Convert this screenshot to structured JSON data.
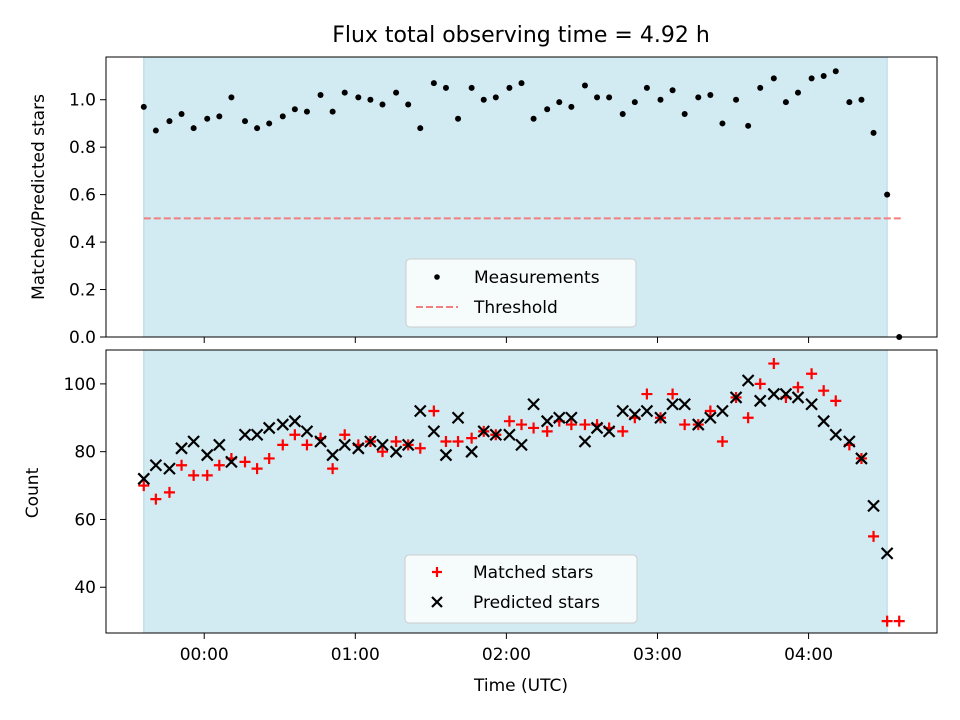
{
  "chart_data": {
    "title": "Flux total observing time = 4.92 h",
    "type": "scatter",
    "xlabel": "Time (UTC)",
    "x_unit": "hours UTC",
    "xlim": [
      -0.65,
      4.85
    ],
    "xticks": [
      {
        "value": 0,
        "label": "00:00"
      },
      {
        "value": 1,
        "label": "01:00"
      },
      {
        "value": 2,
        "label": "02:00"
      },
      {
        "value": 3,
        "label": "03:00"
      },
      {
        "value": 4,
        "label": "04:00"
      }
    ],
    "observing_span": [
      -0.4,
      4.52
    ],
    "colors": {
      "span": "#add8e6",
      "matched": "#ff0000",
      "predicted": "#000000",
      "threshold": "#f08080"
    },
    "panels": [
      {
        "ylabel": "Matched/Predicted stars",
        "ylim": [
          0.0,
          1.18
        ],
        "yticks": [
          0.0,
          0.2,
          0.4,
          0.6,
          0.8,
          1.0
        ],
        "threshold": 0.5,
        "legend": {
          "position": "lower center",
          "entries": [
            "Measurements",
            "Threshold"
          ]
        },
        "series": [
          {
            "name": "Measurements",
            "marker": "dot",
            "x": [
              -0.4,
              -0.32,
              -0.23,
              -0.15,
              -0.07,
              0.02,
              0.1,
              0.18,
              0.27,
              0.35,
              0.43,
              0.52,
              0.6,
              0.68,
              0.77,
              0.85,
              0.93,
              1.02,
              1.1,
              1.18,
              1.27,
              1.35,
              1.43,
              1.52,
              1.6,
              1.68,
              1.77,
              1.85,
              1.93,
              2.02,
              2.1,
              2.18,
              2.27,
              2.35,
              2.43,
              2.52,
              2.6,
              2.68,
              2.77,
              2.85,
              2.93,
              3.02,
              3.1,
              3.18,
              3.27,
              3.35,
              3.43,
              3.52,
              3.6,
              3.68,
              3.77,
              3.85,
              3.93,
              4.02,
              4.1,
              4.18,
              4.27,
              4.35,
              4.43,
              4.52,
              4.6
            ],
            "y": [
              0.97,
              0.87,
              0.91,
              0.94,
              0.88,
              0.92,
              0.93,
              1.01,
              0.91,
              0.88,
              0.9,
              0.93,
              0.96,
              0.95,
              1.02,
              0.95,
              1.03,
              1.01,
              1.0,
              0.98,
              1.03,
              0.98,
              0.88,
              1.07,
              1.05,
              0.92,
              1.05,
              1.0,
              1.01,
              1.05,
              1.07,
              0.92,
              0.96,
              0.99,
              0.97,
              1.06,
              1.01,
              1.01,
              0.94,
              0.99,
              1.05,
              1.0,
              1.04,
              0.94,
              1.01,
              1.02,
              0.9,
              1.0,
              0.89,
              1.05,
              1.09,
              0.99,
              1.03,
              1.09,
              1.1,
              1.12,
              0.99,
              1.0,
              0.86,
              0.6,
              0.0
            ]
          }
        ]
      },
      {
        "ylabel": "Count",
        "ylim": [
          26.5,
          110
        ],
        "yticks": [
          40,
          60,
          80,
          100
        ],
        "legend": {
          "position": "lower center",
          "entries": [
            "Matched stars",
            "Predicted stars"
          ]
        },
        "series": [
          {
            "name": "Matched stars",
            "marker": "plus",
            "x": [
              -0.4,
              -0.32,
              -0.23,
              -0.15,
              -0.07,
              0.02,
              0.1,
              0.18,
              0.27,
              0.35,
              0.43,
              0.52,
              0.6,
              0.68,
              0.77,
              0.85,
              0.93,
              1.02,
              1.1,
              1.18,
              1.27,
              1.35,
              1.43,
              1.52,
              1.6,
              1.68,
              1.77,
              1.85,
              1.93,
              2.02,
              2.1,
              2.18,
              2.27,
              2.35,
              2.43,
              2.52,
              2.6,
              2.68,
              2.77,
              2.85,
              2.93,
              3.02,
              3.1,
              3.18,
              3.27,
              3.35,
              3.43,
              3.52,
              3.6,
              3.68,
              3.77,
              3.85,
              3.93,
              4.02,
              4.1,
              4.18,
              4.27,
              4.35,
              4.43,
              4.52,
              4.6
            ],
            "y": [
              70,
              66,
              68,
              76,
              73,
              73,
              76,
              78,
              77,
              75,
              78,
              82,
              85,
              82,
              84,
              75,
              85,
              82,
              83,
              80,
              83,
              82,
              81,
              92,
              83,
              83,
              84,
              86,
              85,
              89,
              88,
              87,
              86,
              89,
              88,
              88,
              88,
              87,
              86,
              90,
              97,
              90,
              97,
              88,
              88,
              92,
              83,
              96,
              90,
              100,
              106,
              96,
              99,
              103,
              98,
              95,
              82,
              78,
              55,
              30,
              30
            ]
          },
          {
            "name": "Predicted stars",
            "marker": "x",
            "x": [
              -0.4,
              -0.32,
              -0.23,
              -0.15,
              -0.07,
              0.02,
              0.1,
              0.18,
              0.27,
              0.35,
              0.43,
              0.52,
              0.6,
              0.68,
              0.77,
              0.85,
              0.93,
              1.02,
              1.1,
              1.18,
              1.27,
              1.35,
              1.43,
              1.52,
              1.6,
              1.68,
              1.77,
              1.85,
              1.93,
              2.02,
              2.1,
              2.18,
              2.27,
              2.35,
              2.43,
              2.52,
              2.6,
              2.68,
              2.77,
              2.85,
              2.93,
              3.02,
              3.1,
              3.18,
              3.27,
              3.35,
              3.43,
              3.52,
              3.6,
              3.68,
              3.77,
              3.85,
              3.93,
              4.02,
              4.1,
              4.18,
              4.27,
              4.35,
              4.43,
              4.52
            ],
            "y": [
              72,
              76,
              75,
              81,
              83,
              79,
              82,
              77,
              85,
              85,
              87,
              88,
              89,
              86,
              83,
              79,
              82,
              81,
              83,
              82,
              80,
              82,
              92,
              86,
              79,
              90,
              80,
              86,
              85,
              85,
              82,
              94,
              89,
              90,
              90,
              83,
              87,
              86,
              92,
              91,
              92,
              90,
              94,
              94,
              88,
              90,
              92,
              96,
              101,
              95,
              97,
              97,
              96,
              94,
              89,
              85,
              83,
              78,
              64,
              50
            ]
          }
        ]
      }
    ]
  }
}
